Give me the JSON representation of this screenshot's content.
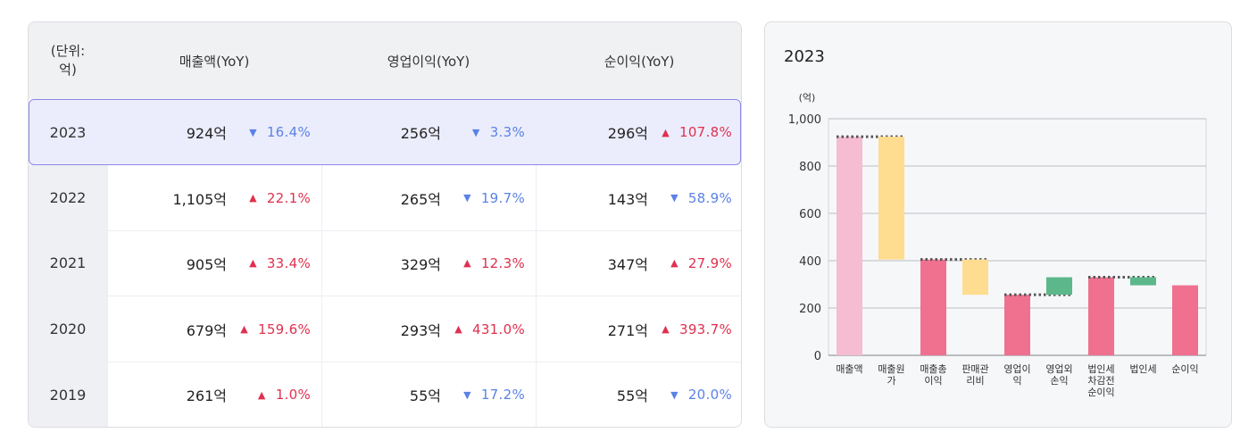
{
  "table": {
    "headers": {
      "unit": "(단위:\n억)",
      "col1": "매출액(YoY)",
      "col2": "영업이익(YoY)",
      "col3": "순이익(YoY)"
    },
    "rows": [
      {
        "year": "2023",
        "c1": {
          "value": "924억",
          "arrow": "▼",
          "change": "16.4%",
          "dir": "down"
        },
        "c2": {
          "value": "256억",
          "arrow": "▼",
          "change": "3.3%",
          "dir": "down"
        },
        "c3": {
          "value": "296억",
          "arrow": "▲",
          "change": "107.8%",
          "dir": "up"
        }
      },
      {
        "year": "2022",
        "c1": {
          "value": "1,105억",
          "arrow": "▲",
          "change": "22.1%",
          "dir": "up"
        },
        "c2": {
          "value": "265억",
          "arrow": "▼",
          "change": "19.7%",
          "dir": "down"
        },
        "c3": {
          "value": "143억",
          "arrow": "▼",
          "change": "58.9%",
          "dir": "down"
        }
      },
      {
        "year": "2021",
        "c1": {
          "value": "905억",
          "arrow": "▲",
          "change": "33.4%",
          "dir": "up"
        },
        "c2": {
          "value": "329억",
          "arrow": "▲",
          "change": "12.3%",
          "dir": "up"
        },
        "c3": {
          "value": "347억",
          "arrow": "▲",
          "change": "27.9%",
          "dir": "up"
        }
      },
      {
        "year": "2020",
        "c1": {
          "value": "679억",
          "arrow": "▲",
          "change": "159.6%",
          "dir": "up"
        },
        "c2": {
          "value": "293억",
          "arrow": "▲",
          "change": "431.0%",
          "dir": "up"
        },
        "c3": {
          "value": "271억",
          "arrow": "▲",
          "change": "393.7%",
          "dir": "up"
        }
      },
      {
        "year": "2019",
        "c1": {
          "value": "261억",
          "arrow": "▲",
          "change": "1.0%",
          "dir": "up"
        },
        "c2": {
          "value": "55억",
          "arrow": "▼",
          "change": "17.2%",
          "dir": "down"
        },
        "c3": {
          "value": "55억",
          "arrow": "▼",
          "change": "20.0%",
          "dir": "down"
        }
      }
    ],
    "colors": {
      "up": "#e0304f",
      "down": "#5a82e6",
      "highlight": "#ecedfc",
      "highlight_border": "#8d87e6"
    }
  },
  "chart_data": {
    "type": "waterfall",
    "title": "2023",
    "ylabel": "(억)",
    "ylim": [
      0,
      1000
    ],
    "yticks": [
      "0",
      "200",
      "400",
      "600",
      "800",
      "1,000"
    ],
    "ytick_values": [
      0,
      200,
      400,
      600,
      800,
      1000
    ],
    "grid": true,
    "categories": [
      "매출액",
      "매출원\n가",
      "매출총\n이익",
      "판매관\n리비",
      "영업이\n익",
      "영업외\n손익",
      "법인세\n차감전\n순이익",
      "법인세",
      "순이익"
    ],
    "bars": [
      {
        "start": 0,
        "end": 924,
        "color": "#f5bcd2",
        "connector": 924
      },
      {
        "start": 405,
        "end": 924,
        "color": "#fedd90",
        "connector": null
      },
      {
        "start": 0,
        "end": 405,
        "color": "#f07090",
        "connector": 405
      },
      {
        "start": 256,
        "end": 405,
        "color": "#fedd90",
        "connector": null
      },
      {
        "start": 0,
        "end": 256,
        "color": "#f07090",
        "connector": 256
      },
      {
        "start": 256,
        "end": 330,
        "color": "#5cb88a",
        "connector": null
      },
      {
        "start": 0,
        "end": 330,
        "color": "#f07090",
        "connector": 330
      },
      {
        "start": 296,
        "end": 330,
        "color": "#5cb88a",
        "connector": null
      },
      {
        "start": 0,
        "end": 296,
        "color": "#f07090",
        "connector": null
      }
    ]
  }
}
